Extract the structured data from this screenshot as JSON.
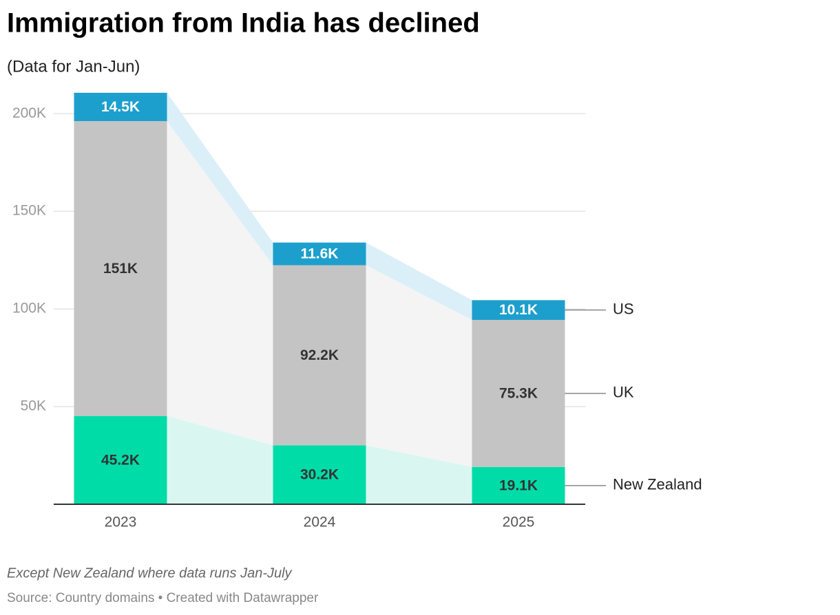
{
  "chart_data": {
    "type": "stacked-bar",
    "title": "Immigration from India has declined",
    "subtitle": "(Data for Jan-Jun)",
    "note": "Except New Zealand where data runs Jan-July",
    "source": "Source: Country domains • Created with Datawrapper",
    "categories": [
      "2023",
      "2024",
      "2025"
    ],
    "series": [
      {
        "name": "New Zealand",
        "color": "#00dca8",
        "area_color": "#d9f7f0",
        "label_color": "#333333",
        "values": [
          45200,
          30200,
          19100
        ],
        "value_labels": [
          "45.2K",
          "30.2K",
          "19.1K"
        ]
      },
      {
        "name": "UK",
        "color": "#c4c4c4",
        "area_color": "#f4f4f4",
        "label_color": "#333333",
        "values": [
          151000,
          92200,
          75300
        ],
        "value_labels": [
          "151K",
          "92.2K",
          "75.3K"
        ]
      },
      {
        "name": "US",
        "color": "#1d9fcd",
        "area_color": "#dbeff8",
        "label_color": "#ffffff",
        "values": [
          14500,
          11600,
          10100
        ],
        "value_labels": [
          "14.5K",
          "11.6K",
          "10.1K"
        ]
      }
    ],
    "ylim": [
      0,
      211000
    ],
    "yticks": [
      {
        "value": 50000,
        "label": "50K"
      },
      {
        "value": 100000,
        "label": "100K"
      },
      {
        "value": 150000,
        "label": "150K"
      },
      {
        "value": 200000,
        "label": "200K"
      }
    ],
    "grid": true
  }
}
